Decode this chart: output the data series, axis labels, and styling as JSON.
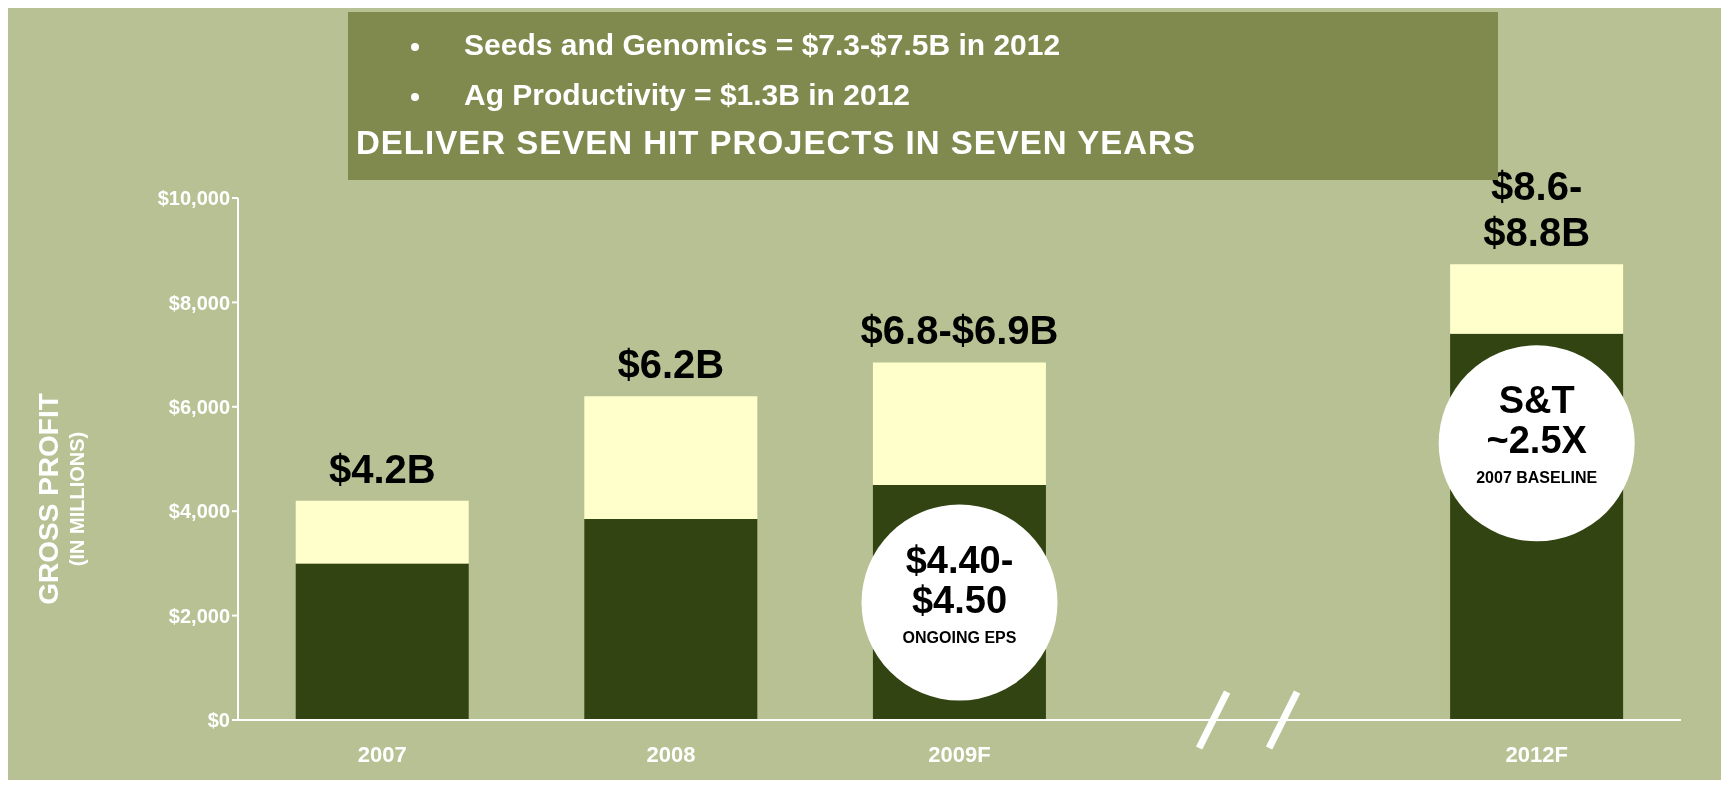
{
  "chart_data": {
    "type": "bar",
    "title": "DELIVER SEVEN HIT PROJECTS IN SEVEN YEARS",
    "ylabel": "GROSS PROFIT\n(IN MILLIONS)",
    "categories": [
      "2007",
      "2008",
      "2009F",
      null,
      "2012F"
    ],
    "stacked": true,
    "series": [
      {
        "color": "#314411",
        "values": [
          3000,
          3850,
          4500,
          null,
          7400
        ]
      },
      {
        "color": "#ffffcc",
        "values": [
          1200,
          2350,
          2350,
          null,
          1330
        ]
      }
    ],
    "totals": [
      "$4.2B",
      "$6.2B",
      "$6.8-$6.9B",
      null,
      "$8.6-\n$8.8B"
    ],
    "ylim": [
      0,
      10000
    ],
    "yticks": [
      {
        "value": 0,
        "label": "$0"
      },
      {
        "value": 2000,
        "label": "$2,000"
      },
      {
        "value": 4000,
        "label": "$4,000"
      },
      {
        "value": 6000,
        "label": "$6,000"
      },
      {
        "value": 8000,
        "label": "$8,000"
      },
      {
        "value": 10000,
        "label": "$10,000"
      }
    ],
    "grid": false,
    "legend": false,
    "annotations": [
      "Seeds and Genomics = $7.3-$7.5B in 2012",
      "Ag Productivity = $1.3B in 2012",
      "$4.40-\n$4.50\nONGOING EPS",
      "S&T\n~2.5X\n2007 BASELINE"
    ]
  }
}
